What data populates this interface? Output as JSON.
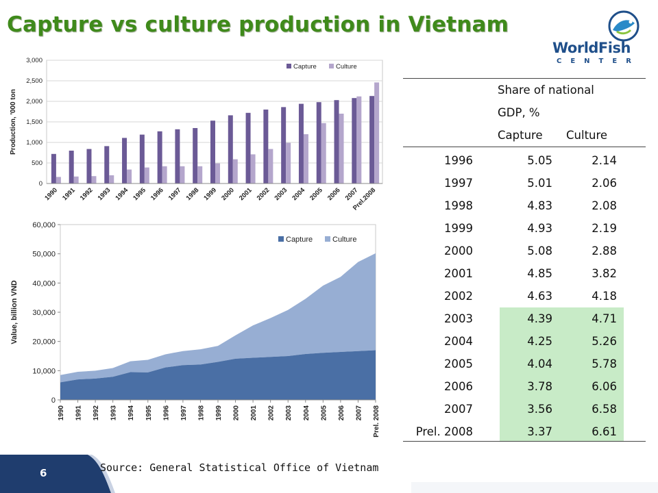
{
  "slide": {
    "title": "Capture vs culture production in Vietnam",
    "page_number": "6",
    "source": "Source: General Statistical Office of Vietnam",
    "logo": {
      "name": "WorldFish",
      "sub": "CENTER"
    }
  },
  "colors": {
    "title": "#3f8a1b",
    "capture_bar": "#6b5a96",
    "culture_bar": "#b4a6cc",
    "capture_area": "#4a6fa5",
    "culture_area": "#97aed3",
    "highlight": "#c8ebc7",
    "footer": "#1f3d6e"
  },
  "chart_data": [
    {
      "type": "bar",
      "categories": [
        "1990",
        "1991",
        "1992",
        "1993",
        "1994",
        "1995",
        "1996",
        "1997",
        "1998",
        "1999",
        "2000",
        "2001",
        "2002",
        "2003",
        "2004",
        "2005",
        "2006",
        "2007",
        "Prel.2008"
      ],
      "series": [
        {
          "name": "Capture",
          "values": [
            720,
            800,
            840,
            910,
            1110,
            1190,
            1270,
            1320,
            1350,
            1530,
            1660,
            1720,
            1800,
            1860,
            1940,
            1980,
            2030,
            2080,
            2130
          ]
        },
        {
          "name": "Culture",
          "values": [
            160,
            170,
            180,
            200,
            340,
            390,
            420,
            420,
            420,
            490,
            590,
            710,
            840,
            990,
            1200,
            1470,
            1700,
            2120,
            2460
          ]
        }
      ],
      "ylabel": "Production, '000 ton",
      "ylim": [
        0,
        3000
      ],
      "yticks": [
        "0",
        "500",
        "1,000",
        "1,500",
        "2,000",
        "2,500",
        "3,000"
      ],
      "grid": true,
      "legend": "top-right"
    },
    {
      "type": "area",
      "stacked": true,
      "categories": [
        "1990",
        "1991",
        "1992",
        "1993",
        "1994",
        "1995",
        "1996",
        "1997",
        "1998",
        "1999",
        "2000",
        "2001",
        "2002",
        "2003",
        "2004",
        "2005",
        "2006",
        "2007",
        "Prel. 2008"
      ],
      "series": [
        {
          "name": "Capture",
          "values": [
            6000,
            7000,
            7300,
            7900,
            9500,
            9400,
            11100,
            11900,
            12100,
            13000,
            14100,
            14400,
            14700,
            15000,
            15700,
            16100,
            16400,
            16700,
            17000
          ]
        },
        {
          "name": "Culture",
          "values": [
            2500,
            2600,
            2700,
            3000,
            3700,
            4300,
            4500,
            4800,
            5200,
            5500,
            8000,
            11100,
            13300,
            15800,
            18900,
            23000,
            25700,
            30500,
            33200
          ]
        }
      ],
      "ylabel": "Value, billion VND",
      "ylim": [
        0,
        60000
      ],
      "yticks": [
        "0",
        "10,000",
        "20,000",
        "30,000",
        "40,000",
        "50,000",
        "60,000"
      ],
      "grid": false,
      "legend": "top-right"
    },
    {
      "type": "table",
      "header": {
        "line1": "Share of national",
        "line2": "GDP, %",
        "col_capture": "Capture",
        "col_culture": "Culture"
      },
      "rows": [
        {
          "year": "1996",
          "capture": "5.05",
          "culture": "2.14"
        },
        {
          "year": "1997",
          "capture": "5.01",
          "culture": "2.06"
        },
        {
          "year": "1998",
          "capture": "4.83",
          "culture": "2.08"
        },
        {
          "year": "1999",
          "capture": "4.93",
          "culture": "2.19"
        },
        {
          "year": "2000",
          "capture": "5.08",
          "culture": "2.88"
        },
        {
          "year": "2001",
          "capture": "4.85",
          "culture": "3.82"
        },
        {
          "year": "2002",
          "capture": "4.63",
          "culture": "4.18"
        },
        {
          "year": "2003",
          "capture": "4.39",
          "culture": "4.71"
        },
        {
          "year": "2004",
          "capture": "4.25",
          "culture": "5.26"
        },
        {
          "year": "2005",
          "capture": "4.04",
          "culture": "5.78"
        },
        {
          "year": "2006",
          "capture": "3.78",
          "culture": "6.06"
        },
        {
          "year": "2007",
          "capture": "3.56",
          "culture": "6.58"
        },
        {
          "year": "Prel. 2008",
          "capture": "3.37",
          "culture": "6.61"
        }
      ],
      "highlight_from_year": "2003"
    }
  ]
}
